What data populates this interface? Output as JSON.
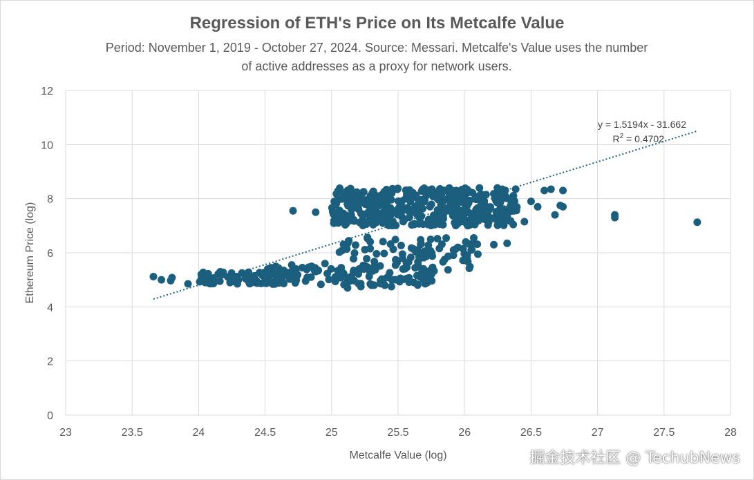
{
  "chart_data": {
    "type": "scatter",
    "title": "Regression of ETH's Price on Its Metcalfe Value",
    "subtitle_line1": "Period: November 1, 2019 - October 27, 2024. Source: Messari. Metcalfe's Value uses the number",
    "subtitle_line2": "of active addresses as a proxy for network users.",
    "xlabel": "Metcalfe Value (log)",
    "ylabel": "Ethereum Price (log)",
    "xlim": [
      23,
      28
    ],
    "ylim": [
      0,
      12
    ],
    "xticks": [
      "23",
      "23.5",
      "24",
      "24.5",
      "25",
      "25.5",
      "26",
      "26.5",
      "27",
      "27.5",
      "28"
    ],
    "yticks": [
      "0",
      "2",
      "4",
      "6",
      "8",
      "10",
      "12"
    ],
    "grid": true,
    "point_color": "#1b5e7e",
    "trendline": {
      "slope": 1.5194,
      "intercept": -31.662,
      "x_range": [
        23.66,
        27.75
      ],
      "equation_label": "y = 1.5194x - 31.662",
      "r2_prefix": "R",
      "r2_sup": "2",
      "r2_value": " = 0.4702",
      "color": "#1b5e7e"
    },
    "series": [
      {
        "clusters": [
          {
            "x_range": [
              25.0,
              26.4
            ],
            "y_range": [
              7.0,
              8.4
            ],
            "count": 420
          },
          {
            "x_range": [
              25.05,
              26.1
            ],
            "y_range": [
              5.3,
              6.6
            ],
            "count": 90
          },
          {
            "x_range": [
              24.5,
              25.8
            ],
            "y_range": [
              4.8,
              5.5
            ],
            "count": 110
          },
          {
            "x_range": [
              24.0,
              24.6
            ],
            "y_range": [
              4.85,
              5.3
            ],
            "count": 70
          }
        ],
        "points": [
          [
            23.66,
            5.12
          ],
          [
            23.72,
            5.0
          ],
          [
            23.79,
            4.97
          ],
          [
            23.8,
            5.08
          ],
          [
            23.92,
            4.85
          ],
          [
            24.02,
            5.2
          ],
          [
            24.05,
            4.9
          ],
          [
            24.1,
            5.05
          ],
          [
            24.16,
            4.95
          ],
          [
            24.22,
            5.1
          ],
          [
            24.3,
            5.0
          ],
          [
            24.35,
            5.15
          ],
          [
            24.42,
            4.95
          ],
          [
            24.48,
            5.25
          ],
          [
            24.52,
            5.4
          ],
          [
            24.58,
            5.5
          ],
          [
            24.64,
            5.35
          ],
          [
            24.7,
            5.55
          ],
          [
            24.78,
            5.45
          ],
          [
            24.85,
            5.5
          ],
          [
            24.9,
            5.35
          ],
          [
            24.95,
            5.6
          ],
          [
            24.71,
            7.55
          ],
          [
            24.88,
            7.5
          ],
          [
            25.05,
            7.1
          ],
          [
            25.05,
            7.5
          ],
          [
            25.08,
            7.3
          ],
          [
            25.15,
            7.6
          ],
          [
            25.2,
            7.75
          ],
          [
            25.28,
            7.4
          ],
          [
            25.32,
            7.9
          ],
          [
            25.38,
            8.05
          ],
          [
            25.12,
            4.7
          ],
          [
            25.22,
            4.75
          ],
          [
            25.3,
            4.8
          ],
          [
            25.4,
            4.8
          ],
          [
            25.45,
            4.75
          ],
          [
            25.62,
            4.9
          ],
          [
            25.72,
            4.9
          ],
          [
            25.85,
            5.75
          ],
          [
            25.95,
            6.2
          ],
          [
            26.02,
            5.9
          ],
          [
            26.05,
            6.1
          ],
          [
            26.1,
            5.95
          ],
          [
            26.18,
            7.2
          ],
          [
            26.22,
            6.3
          ],
          [
            26.3,
            7.2
          ],
          [
            26.32,
            6.35
          ],
          [
            26.45,
            7.15
          ],
          [
            26.5,
            7.9
          ],
          [
            26.55,
            7.7
          ],
          [
            26.6,
            8.3
          ],
          [
            26.65,
            8.35
          ],
          [
            26.68,
            7.4
          ],
          [
            26.72,
            7.75
          ],
          [
            26.74,
            8.3
          ],
          [
            26.74,
            7.7
          ],
          [
            27.13,
            7.4
          ],
          [
            27.13,
            7.3
          ],
          [
            27.75,
            7.13
          ]
        ]
      }
    ]
  },
  "watermark": "掘金技术社区 @ TechubNews"
}
